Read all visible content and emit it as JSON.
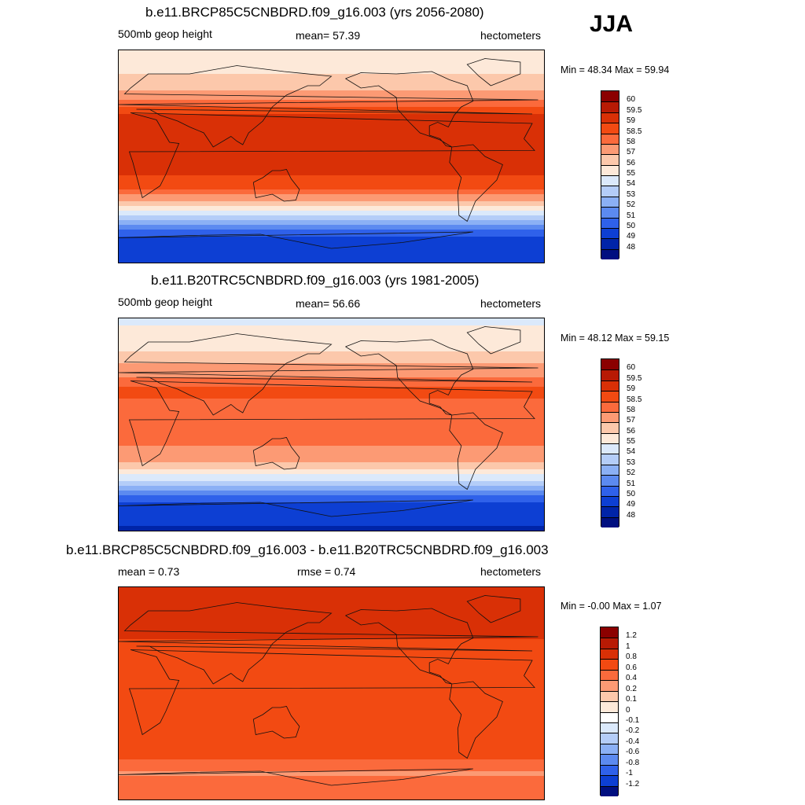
{
  "season": "JJA",
  "panels": [
    {
      "id": "future",
      "title": "b.e11.BRCP85C5CNBDRD.f09_g16.003 (yrs 2056-2080)",
      "left_label": "500mb geop height",
      "center_label": "mean=  57.39",
      "right_label": "hectometers",
      "minmax": "Min =  48.34 Max =  59.94",
      "colorbar_labels": [
        "60",
        "59.5",
        "59",
        "58.5",
        "58",
        "57",
        "56",
        "55",
        "54",
        "53",
        "52",
        "51",
        "50",
        "49",
        "48"
      ],
      "colorbar_colors": [
        "#8b0000",
        "#b81a04",
        "#d93006",
        "#f24a12",
        "#fb6a3c",
        "#fc9a74",
        "#fcc8ab",
        "#fde9d9",
        "#dbe9fb",
        "#b4cdf8",
        "#8bb0f5",
        "#5c8af0",
        "#2f61ea",
        "#0d3fd3",
        "#0024a8",
        "#000f80"
      ],
      "bands": [
        {
          "lat": 90,
          "value": 55.5
        },
        {
          "lat": 62,
          "value": 56.2
        },
        {
          "lat": 45,
          "value": 58.3
        },
        {
          "lat": 30,
          "value": 59.4
        },
        {
          "lat": 10,
          "value": 59.1
        },
        {
          "lat": -12,
          "value": 59.1
        },
        {
          "lat": -25,
          "value": 58.8
        },
        {
          "lat": -35,
          "value": 57.5
        },
        {
          "lat": -45,
          "value": 55.5
        },
        {
          "lat": -55,
          "value": 52.5
        },
        {
          "lat": -68,
          "value": 50.0
        },
        {
          "lat": -90,
          "value": 49.0
        }
      ]
    },
    {
      "id": "historical",
      "title": "b.e11.B20TRC5CNBDRD.f09_g16.003 (yrs 1981-2005)",
      "left_label": "500mb geop height",
      "center_label": "mean=  56.66",
      "right_label": "hectometers",
      "minmax": "Min =  48.12 Max =  59.15",
      "colorbar_labels": [
        "60",
        "59.5",
        "59",
        "58.5",
        "58",
        "57",
        "56",
        "55",
        "54",
        "53",
        "52",
        "51",
        "50",
        "49",
        "48"
      ],
      "colorbar_colors": [
        "#8b0000",
        "#b81a04",
        "#d93006",
        "#f24a12",
        "#fb6a3c",
        "#fc9a74",
        "#fcc8ab",
        "#fde9d9",
        "#dbe9fb",
        "#b4cdf8",
        "#8bb0f5",
        "#5c8af0",
        "#2f61ea",
        "#0d3fd3",
        "#0024a8",
        "#000f80"
      ],
      "bands": [
        {
          "lat": 90,
          "value": 54.8
        },
        {
          "lat": 65,
          "value": 55.6
        },
        {
          "lat": 48,
          "value": 57.3
        },
        {
          "lat": 30,
          "value": 58.7
        },
        {
          "lat": 10,
          "value": 58.2
        },
        {
          "lat": -12,
          "value": 58.2
        },
        {
          "lat": -25,
          "value": 57.8
        },
        {
          "lat": -35,
          "value": 56.5
        },
        {
          "lat": -45,
          "value": 54.5
        },
        {
          "lat": -55,
          "value": 52.0
        },
        {
          "lat": -68,
          "value": 49.7
        },
        {
          "lat": -90,
          "value": 48.8
        }
      ]
    },
    {
      "id": "difference",
      "title": "b.e11.BRCP85C5CNBDRD.f09_g16.003 - b.e11.B20TRC5CNBDRD.f09_g16.003",
      "left_label": "mean =   0.73",
      "center_label": "rmse =   0.74",
      "right_label": "hectometers",
      "minmax": "Min =  -0.00 Max =   1.07",
      "colorbar_labels": [
        "1.2",
        "1",
        "0.8",
        "0.6",
        "0.4",
        "0.2",
        "0.1",
        "0",
        "-0.1",
        "-0.2",
        "-0.4",
        "-0.6",
        "-0.8",
        "-1",
        "-1.2"
      ],
      "colorbar_colors": [
        "#8b0000",
        "#b81a04",
        "#d93006",
        "#f24a12",
        "#fb6a3c",
        "#fc9a74",
        "#fcc8ab",
        "#fde9d9",
        "#ffffff",
        "#dbe9fb",
        "#b4cdf8",
        "#8bb0f5",
        "#5c8af0",
        "#2f61ea",
        "#0d3fd3",
        "#000f80"
      ],
      "bands": [
        {
          "lat": 90,
          "value": 0.85
        },
        {
          "lat": 60,
          "value": 0.9
        },
        {
          "lat": 40,
          "value": 0.75
        },
        {
          "lat": 20,
          "value": 0.7
        },
        {
          "lat": 0,
          "value": 0.7
        },
        {
          "lat": -25,
          "value": 0.75
        },
        {
          "lat": -40,
          "value": 0.65
        },
        {
          "lat": -55,
          "value": 0.6
        },
        {
          "lat": -68,
          "value": 0.35
        },
        {
          "lat": -80,
          "value": 0.55
        },
        {
          "lat": -90,
          "value": 0.6
        }
      ]
    }
  ]
}
